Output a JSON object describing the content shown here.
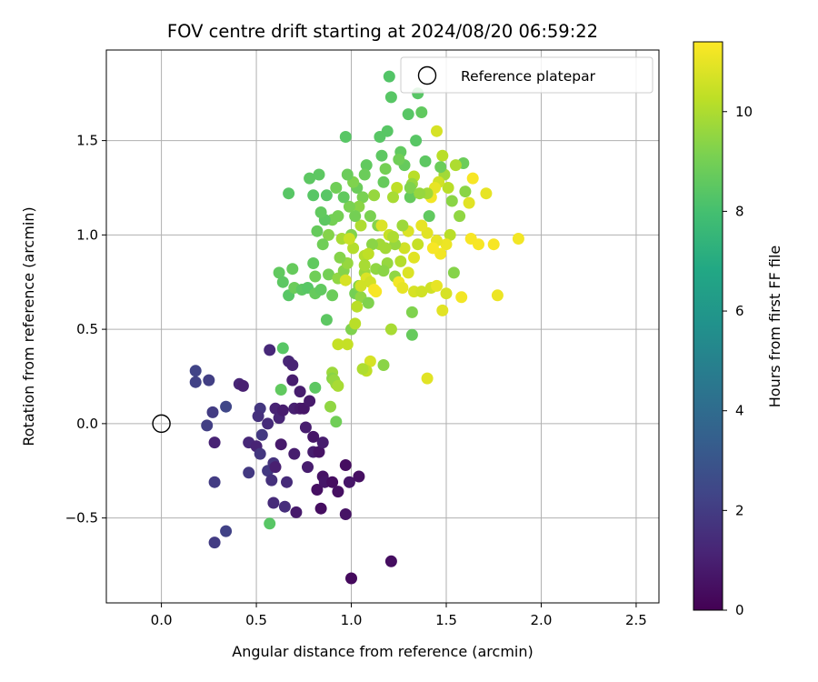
{
  "chart_data": {
    "type": "scatter",
    "title": "FOV centre drift starting at 2024/08/20 06:59:22",
    "xlabel": "Angular distance from reference (arcmin)",
    "ylabel": "Rotation from reference (arcmin)",
    "xlim": [
      -0.29,
      2.62
    ],
    "ylim": [
      -0.95,
      1.98
    ],
    "xticks": [
      0.0,
      0.5,
      1.0,
      1.5,
      2.0,
      2.5
    ],
    "xtick_labels": [
      "0.0",
      "0.5",
      "1.0",
      "1.5",
      "2.0",
      "2.5"
    ],
    "yticks": [
      -0.5,
      0.0,
      0.5,
      1.0,
      1.5
    ],
    "ytick_labels": [
      "−0.5",
      "0.0",
      "0.5",
      "1.0",
      "1.5"
    ],
    "grid": true,
    "colorbar": {
      "label": "Hours from first FF file",
      "range": [
        0,
        11.4
      ],
      "ticks": [
        0,
        2,
        4,
        6,
        8,
        10
      ],
      "tick_labels": [
        "0",
        "2",
        "4",
        "6",
        "8",
        "10"
      ],
      "colormap": "viridis"
    },
    "legend": {
      "position": "top-right",
      "entries": [
        "Reference platepar"
      ]
    },
    "reference": {
      "x": 0.0,
      "y": 0.0,
      "label": "Reference platepar"
    },
    "points": [
      [
        0.18,
        0.28,
        2.3
      ],
      [
        0.18,
        0.22,
        2.2
      ],
      [
        0.25,
        0.23,
        2.1
      ],
      [
        0.27,
        0.06,
        2.0
      ],
      [
        0.24,
        -0.01,
        2.1
      ],
      [
        0.34,
        0.09,
        2.4
      ],
      [
        0.28,
        -0.1,
        1.1
      ],
      [
        0.28,
        -0.31,
        2.0
      ],
      [
        0.34,
        -0.57,
        2.2
      ],
      [
        0.28,
        -0.63,
        2.0
      ],
      [
        0.41,
        0.21,
        1.2
      ],
      [
        0.43,
        0.2,
        1.0
      ],
      [
        0.46,
        -0.1,
        1.3
      ],
      [
        0.46,
        -0.26,
        1.9
      ],
      [
        0.5,
        -0.12,
        1.1
      ],
      [
        0.52,
        0.08,
        1.8
      ],
      [
        0.51,
        0.04,
        1.6
      ],
      [
        0.53,
        -0.06,
        1.9
      ],
      [
        0.52,
        -0.16,
        1.8
      ],
      [
        0.56,
        0.0,
        1.4
      ],
      [
        0.56,
        -0.25,
        1.9
      ],
      [
        0.57,
        0.39,
        1.3
      ],
      [
        0.59,
        -0.21,
        1.7
      ],
      [
        0.58,
        -0.3,
        1.6
      ],
      [
        0.59,
        -0.42,
        1.4
      ],
      [
        0.6,
        -0.23,
        1.0
      ],
      [
        0.6,
        0.08,
        1.1
      ],
      [
        0.62,
        0.03,
        1.2
      ],
      [
        0.63,
        -0.11,
        0.8
      ],
      [
        0.64,
        0.07,
        0.9
      ],
      [
        0.66,
        -0.31,
        1.4
      ],
      [
        0.65,
        -0.44,
        1.5
      ],
      [
        0.67,
        0.33,
        1.2
      ],
      [
        0.69,
        0.31,
        1.1
      ],
      [
        0.69,
        0.23,
        0.9
      ],
      [
        0.7,
        0.08,
        1.0
      ],
      [
        0.7,
        -0.16,
        0.9
      ],
      [
        0.71,
        -0.47,
        0.8
      ],
      [
        0.73,
        0.08,
        0.8
      ],
      [
        0.73,
        0.17,
        0.9
      ],
      [
        0.75,
        0.08,
        0.7
      ],
      [
        0.76,
        -0.02,
        0.9
      ],
      [
        0.77,
        -0.23,
        0.9
      ],
      [
        0.78,
        0.12,
        0.8
      ],
      [
        0.8,
        -0.07,
        0.7
      ],
      [
        0.8,
        -0.15,
        0.9
      ],
      [
        0.82,
        -0.35,
        0.5
      ],
      [
        0.83,
        -0.15,
        0.6
      ],
      [
        0.84,
        -0.45,
        0.4
      ],
      [
        0.85,
        -0.1,
        0.9
      ],
      [
        0.85,
        -0.28,
        0.6
      ],
      [
        0.86,
        -0.31,
        0.7
      ],
      [
        0.9,
        -0.31,
        0.4
      ],
      [
        0.93,
        -0.36,
        0.5
      ],
      [
        0.97,
        -0.22,
        0.4
      ],
      [
        0.97,
        -0.48,
        0.6
      ],
      [
        0.99,
        -0.31,
        0.7
      ],
      [
        1.04,
        -0.28,
        0.5
      ],
      [
        1.0,
        -0.82,
        0.3
      ],
      [
        1.21,
        -0.73,
        0.4
      ],
      [
        0.57,
        -0.53,
        8.4
      ],
      [
        0.64,
        0.4,
        8.4
      ],
      [
        0.63,
        0.18,
        8.6
      ],
      [
        0.81,
        0.19,
        8.5
      ],
      [
        0.89,
        0.09,
        9.5
      ],
      [
        0.92,
        0.01,
        8.9
      ],
      [
        0.9,
        0.27,
        9.7
      ],
      [
        0.92,
        0.21,
        9.7
      ],
      [
        0.9,
        0.24,
        9.4
      ],
      [
        0.91,
        0.23,
        9.6
      ],
      [
        0.93,
        0.2,
        9.9
      ],
      [
        0.93,
        0.42,
        10.4
      ],
      [
        0.98,
        0.42,
        10.4
      ],
      [
        0.62,
        0.8,
        8.6
      ],
      [
        0.64,
        0.75,
        8.5
      ],
      [
        0.67,
        0.68,
        8.4
      ],
      [
        0.69,
        0.82,
        8.7
      ],
      [
        0.7,
        0.72,
        8.8
      ],
      [
        0.74,
        0.71,
        8.5
      ],
      [
        0.77,
        0.72,
        8.4
      ],
      [
        0.8,
        0.85,
        8.6
      ],
      [
        0.81,
        0.78,
        8.9
      ],
      [
        0.81,
        0.69,
        8.7
      ],
      [
        0.84,
        0.71,
        8.6
      ],
      [
        0.87,
        0.55,
        8.5
      ],
      [
        0.88,
        0.79,
        9.0
      ],
      [
        0.9,
        0.68,
        8.8
      ],
      [
        0.93,
        0.77,
        9.5
      ],
      [
        0.96,
        0.81,
        9.3
      ],
      [
        0.98,
        0.85,
        9.6
      ],
      [
        1.0,
        0.5,
        9.2
      ],
      [
        1.02,
        0.53,
        10.2
      ],
      [
        1.02,
        0.69,
        9.0
      ],
      [
        1.04,
        0.73,
        9.3
      ],
      [
        1.05,
        0.67,
        9.5
      ],
      [
        1.07,
        0.8,
        9.7
      ],
      [
        1.07,
        0.89,
        10.1
      ],
      [
        1.08,
        0.77,
        10.8
      ],
      [
        1.09,
        0.64,
        9.2
      ],
      [
        1.1,
        0.75,
        10.6
      ],
      [
        1.1,
        0.33,
        10.7
      ],
      [
        1.08,
        0.28,
        10.3
      ],
      [
        1.06,
        0.29,
        10.0
      ],
      [
        1.12,
        0.71,
        11.3
      ],
      [
        1.13,
        0.7,
        11.3
      ],
      [
        1.15,
        0.95,
        9.8
      ],
      [
        1.17,
        0.31,
        9.4
      ],
      [
        1.19,
        0.85,
        9.6
      ],
      [
        1.21,
        0.5,
        9.9
      ],
      [
        1.23,
        0.78,
        9.5
      ],
      [
        1.25,
        0.75,
        11.2
      ],
      [
        1.27,
        0.72,
        11.0
      ],
      [
        1.3,
        0.8,
        10.8
      ],
      [
        1.32,
        0.59,
        9.2
      ],
      [
        1.32,
        0.47,
        8.7
      ],
      [
        1.33,
        0.7,
        10.7
      ],
      [
        1.37,
        0.7,
        10.6
      ],
      [
        1.4,
        0.24,
        10.9
      ],
      [
        1.42,
        0.72,
        10.6
      ],
      [
        1.45,
        0.73,
        11.0
      ],
      [
        1.48,
        0.6,
        10.9
      ],
      [
        1.5,
        0.69,
        10.7
      ],
      [
        1.54,
        0.8,
        9.3
      ],
      [
        1.58,
        0.67,
        11.2
      ],
      [
        1.63,
        0.98,
        11.3
      ],
      [
        1.67,
        0.95,
        11.3
      ],
      [
        1.75,
        0.95,
        11.3
      ],
      [
        1.77,
        0.68,
        11.1
      ],
      [
        1.88,
        0.98,
        11.2
      ],
      [
        1.71,
        1.22,
        11.0
      ],
      [
        1.64,
        1.3,
        11.3
      ],
      [
        1.62,
        1.17,
        10.9
      ],
      [
        1.59,
        1.38,
        8.8
      ],
      [
        1.55,
        1.37,
        10.0
      ],
      [
        1.53,
        1.18,
        9.4
      ],
      [
        1.51,
        1.25,
        10.2
      ],
      [
        1.49,
        1.32,
        9.8
      ],
      [
        1.48,
        1.42,
        10.2
      ],
      [
        1.47,
        1.36,
        8.8
      ],
      [
        1.46,
        1.28,
        10.6
      ],
      [
        1.45,
        1.55,
        10.7
      ],
      [
        1.44,
        1.25,
        11.0
      ],
      [
        1.42,
        1.2,
        11.2
      ],
      [
        1.41,
        1.1,
        8.6
      ],
      [
        1.4,
        1.22,
        9.8
      ],
      [
        1.39,
        1.39,
        8.5
      ],
      [
        1.37,
        1.65,
        8.6
      ],
      [
        1.35,
        1.75,
        8.4
      ],
      [
        1.34,
        1.5,
        8.4
      ],
      [
        1.33,
        1.31,
        10.2
      ],
      [
        1.32,
        1.27,
        9.6
      ],
      [
        1.31,
        1.2,
        8.7
      ],
      [
        1.3,
        1.64,
        8.4
      ],
      [
        1.28,
        1.37,
        8.7
      ],
      [
        1.26,
        1.44,
        8.6
      ],
      [
        1.25,
        1.4,
        8.9
      ],
      [
        1.24,
        1.25,
        10.3
      ],
      [
        1.22,
        1.2,
        9.9
      ],
      [
        1.21,
        1.73,
        8.4
      ],
      [
        1.2,
        1.84,
        8.3
      ],
      [
        1.19,
        1.55,
        8.4
      ],
      [
        1.18,
        1.35,
        9.0
      ],
      [
        1.17,
        1.28,
        8.7
      ],
      [
        1.16,
        1.42,
        8.5
      ],
      [
        1.15,
        1.52,
        8.4
      ],
      [
        1.14,
        1.05,
        9.3
      ],
      [
        1.12,
        1.21,
        9.6
      ],
      [
        1.1,
        1.1,
        9.1
      ],
      [
        1.08,
        1.37,
        8.6
      ],
      [
        1.07,
        1.32,
        8.8
      ],
      [
        1.06,
        1.2,
        9.1
      ],
      [
        1.05,
        1.05,
        10.0
      ],
      [
        1.04,
        1.15,
        9.4
      ],
      [
        1.03,
        1.25,
        8.8
      ],
      [
        1.02,
        1.1,
        9.0
      ],
      [
        1.01,
        1.28,
        9.2
      ],
      [
        1.0,
        1.0,
        9.2
      ],
      [
        0.99,
        1.15,
        9.1
      ],
      [
        0.98,
        1.32,
        8.8
      ],
      [
        0.97,
        1.52,
        8.4
      ],
      [
        0.96,
        1.2,
        8.6
      ],
      [
        0.95,
        0.98,
        9.9
      ],
      [
        0.94,
        0.88,
        9.3
      ],
      [
        0.93,
        1.1,
        9.0
      ],
      [
        0.92,
        1.25,
        8.9
      ],
      [
        0.9,
        1.08,
        9.0
      ],
      [
        0.88,
        1.0,
        9.3
      ],
      [
        0.87,
        1.21,
        8.4
      ],
      [
        0.86,
        1.08,
        8.5
      ],
      [
        0.85,
        0.95,
        8.9
      ],
      [
        0.84,
        1.12,
        8.6
      ],
      [
        0.83,
        1.32,
        8.5
      ],
      [
        0.82,
        1.02,
        8.7
      ],
      [
        0.8,
        1.21,
        8.4
      ],
      [
        0.78,
        1.3,
        8.5
      ],
      [
        0.67,
        1.22,
        8.4
      ],
      [
        1.6,
        1.23,
        9.4
      ],
      [
        1.57,
        1.1,
        9.5
      ],
      [
        1.52,
        1.0,
        10.2
      ],
      [
        1.5,
        0.95,
        11.1
      ],
      [
        1.47,
        0.9,
        11.2
      ],
      [
        1.45,
        0.97,
        11.0
      ],
      [
        1.43,
        0.93,
        11.3
      ],
      [
        1.4,
        1.01,
        10.9
      ],
      [
        1.37,
        1.05,
        11.0
      ],
      [
        1.35,
        0.95,
        10.4
      ],
      [
        1.33,
        0.88,
        10.9
      ],
      [
        1.3,
        1.02,
        10.8
      ],
      [
        1.28,
        0.93,
        10.6
      ],
      [
        1.26,
        0.86,
        10.1
      ],
      [
        1.23,
        0.95,
        9.6
      ],
      [
        1.2,
        1.0,
        10.4
      ],
      [
        1.18,
        0.93,
        9.8
      ],
      [
        1.16,
        1.05,
        10.8
      ],
      [
        1.13,
        0.82,
        9.5
      ],
      [
        1.11,
        0.95,
        9.4
      ],
      [
        1.09,
        0.9,
        10.3
      ],
      [
        1.07,
        0.84,
        9.9
      ],
      [
        1.05,
        0.73,
        10.6
      ],
      [
        1.03,
        0.62,
        10.2
      ],
      [
        1.01,
        0.93,
        10.1
      ],
      [
        0.99,
        0.98,
        10.5
      ],
      [
        0.97,
        0.76,
        10.7
      ],
      [
        1.17,
        0.81,
        9.4
      ],
      [
        1.22,
        0.99,
        10.0
      ],
      [
        1.27,
        1.05,
        9.7
      ],
      [
        1.31,
        1.25,
        9.2
      ],
      [
        1.36,
        1.22,
        9.6
      ]
    ]
  }
}
